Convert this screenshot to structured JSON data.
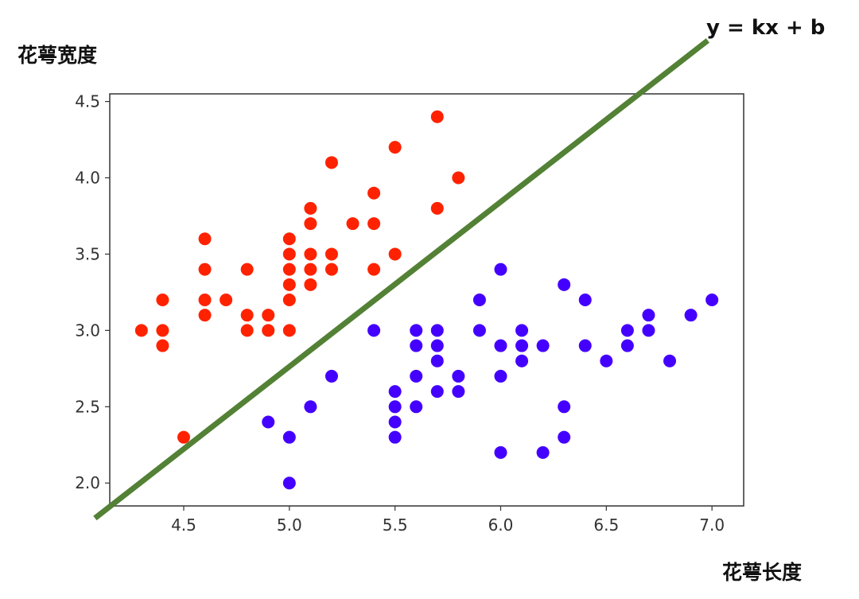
{
  "chart_data": {
    "type": "scatter",
    "title": "",
    "xlabel": "花萼长度",
    "ylabel": "花萼宽度",
    "xlim": [
      4.15,
      7.15
    ],
    "ylim": [
      1.85,
      4.55
    ],
    "xticks": [
      "4.5",
      "5.0",
      "5.5",
      "6.0",
      "6.5",
      "7.0"
    ],
    "yticks": [
      "2.0",
      "2.5",
      "3.0",
      "3.5",
      "4.0",
      "4.5"
    ],
    "grid": false,
    "series": [
      {
        "color": "#ff2200",
        "points": [
          [
            4.3,
            3.0
          ],
          [
            4.4,
            3.2
          ],
          [
            4.4,
            3.0
          ],
          [
            4.4,
            2.9
          ],
          [
            4.5,
            2.3
          ],
          [
            4.6,
            3.6
          ],
          [
            4.6,
            3.4
          ],
          [
            4.6,
            3.2
          ],
          [
            4.6,
            3.1
          ],
          [
            4.7,
            3.2
          ],
          [
            4.8,
            3.4
          ],
          [
            4.8,
            3.1
          ],
          [
            4.8,
            3.0
          ],
          [
            4.9,
            3.1
          ],
          [
            4.9,
            3.0
          ],
          [
            5.0,
            3.6
          ],
          [
            5.0,
            3.5
          ],
          [
            5.0,
            3.4
          ],
          [
            5.0,
            3.3
          ],
          [
            5.0,
            3.2
          ],
          [
            5.0,
            3.0
          ],
          [
            5.1,
            3.8
          ],
          [
            5.1,
            3.7
          ],
          [
            5.1,
            3.5
          ],
          [
            5.1,
            3.4
          ],
          [
            5.1,
            3.3
          ],
          [
            5.2,
            4.1
          ],
          [
            5.2,
            3.5
          ],
          [
            5.2,
            3.4
          ],
          [
            5.3,
            3.7
          ],
          [
            5.4,
            3.9
          ],
          [
            5.4,
            3.7
          ],
          [
            5.4,
            3.4
          ],
          [
            5.5,
            4.2
          ],
          [
            5.5,
            3.5
          ],
          [
            5.7,
            4.4
          ],
          [
            5.7,
            3.8
          ],
          [
            5.8,
            4.0
          ]
        ]
      },
      {
        "color": "#4400ff",
        "points": [
          [
            4.9,
            2.4
          ],
          [
            5.0,
            2.3
          ],
          [
            5.0,
            2.0
          ],
          [
            5.1,
            2.5
          ],
          [
            5.2,
            2.7
          ],
          [
            5.4,
            3.0
          ],
          [
            5.5,
            2.6
          ],
          [
            5.5,
            2.5
          ],
          [
            5.5,
            2.4
          ],
          [
            5.5,
            2.3
          ],
          [
            5.6,
            3.0
          ],
          [
            5.6,
            2.9
          ],
          [
            5.6,
            2.7
          ],
          [
            5.6,
            2.5
          ],
          [
            5.7,
            3.0
          ],
          [
            5.7,
            2.9
          ],
          [
            5.7,
            2.8
          ],
          [
            5.7,
            2.6
          ],
          [
            5.8,
            2.7
          ],
          [
            5.8,
            2.6
          ],
          [
            5.9,
            3.2
          ],
          [
            5.9,
            3.0
          ],
          [
            6.0,
            3.4
          ],
          [
            6.0,
            2.9
          ],
          [
            6.0,
            2.7
          ],
          [
            6.0,
            2.2
          ],
          [
            6.1,
            3.0
          ],
          [
            6.1,
            2.9
          ],
          [
            6.1,
            2.8
          ],
          [
            6.2,
            2.9
          ],
          [
            6.2,
            2.2
          ],
          [
            6.3,
            3.3
          ],
          [
            6.3,
            2.5
          ],
          [
            6.3,
            2.3
          ],
          [
            6.4,
            3.2
          ],
          [
            6.4,
            2.9
          ],
          [
            6.5,
            2.8
          ],
          [
            6.6,
            3.0
          ],
          [
            6.6,
            2.9
          ],
          [
            6.7,
            3.1
          ],
          [
            6.7,
            3.0
          ],
          [
            6.8,
            2.8
          ],
          [
            6.9,
            3.1
          ],
          [
            7.0,
            3.2
          ]
        ]
      }
    ],
    "boundary_line": {
      "label": "y = kx + b",
      "color": "#538135",
      "from": [
        4.08,
        1.77
      ],
      "to": [
        6.98,
        4.9
      ]
    }
  }
}
